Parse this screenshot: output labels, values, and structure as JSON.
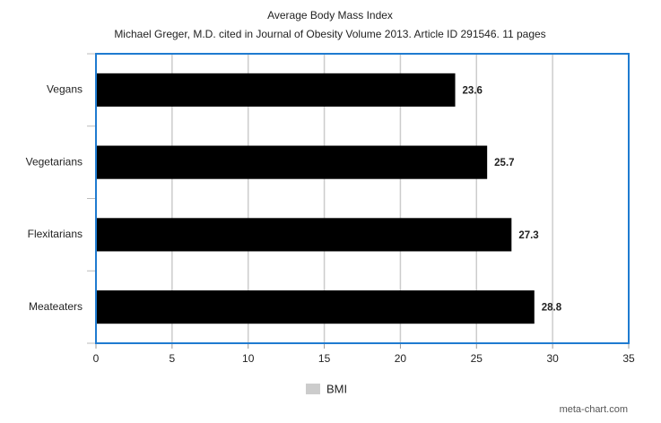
{
  "chart_data": {
    "type": "bar",
    "orientation": "horizontal",
    "title": "Average Body Mass Index",
    "subtitle": "Michael Greger, M.D. cited in Journal of Obesity Volume 2013. Article ID 291546. 11 pages",
    "categories": [
      "Vegans",
      "Vegetarians",
      "Flexitarians",
      "Meateaters"
    ],
    "series": [
      {
        "name": "BMI",
        "color": "#000000",
        "values": [
          23.6,
          25.7,
          27.3,
          28.8
        ]
      }
    ],
    "legend_color": "#cccccc",
    "xlim": [
      0,
      35
    ],
    "xticks": [
      0,
      5,
      10,
      15,
      20,
      25,
      30,
      35
    ],
    "grid": true,
    "frame_color": "#1f7bd0",
    "watermark": "meta-chart.com"
  }
}
